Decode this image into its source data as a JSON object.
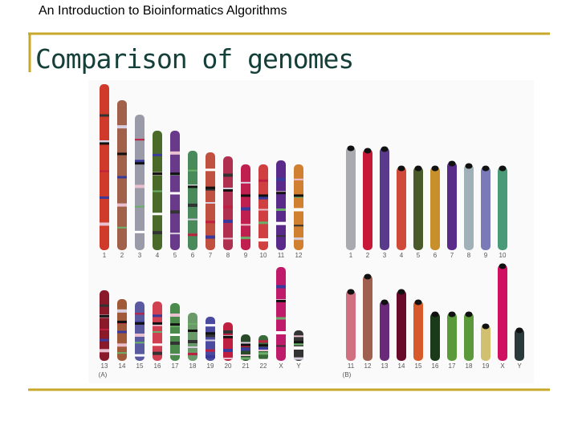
{
  "header": {
    "course": "An Introduction to Bioinformatics Algorithms"
  },
  "slide": {
    "title": "Comparison of genomes"
  },
  "figure": {
    "panels": [
      {
        "label": "(A)",
        "rows": [
          [
            "1",
            "2",
            "3",
            "4",
            "5",
            "6",
            "7",
            "8",
            "9",
            "10",
            "11",
            "12"
          ],
          [
            "13",
            "14",
            "15",
            "16",
            "17",
            "18",
            "19",
            "20",
            "21",
            "22",
            "X",
            "Y"
          ]
        ]
      },
      {
        "label": "(B)",
        "rows": [
          [
            "1",
            "2",
            "3",
            "4",
            "5",
            "6",
            "7",
            "8",
            "9",
            "10"
          ],
          [
            "11",
            "12",
            "13",
            "14",
            "15",
            "16",
            "17",
            "18",
            "19",
            "X",
            "Y"
          ]
        ]
      }
    ]
  }
}
